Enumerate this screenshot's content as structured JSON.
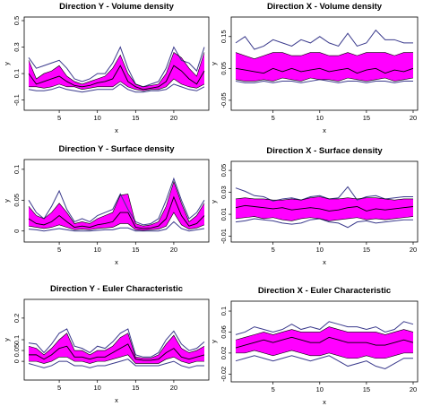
{
  "figure": {
    "colors": {
      "band": "#ff00ff",
      "outer": "#3a3a8c",
      "inner": "#000000",
      "axis": "#000000"
    }
  },
  "chart_data": [
    {
      "type": "area",
      "title": "Direction Y - Volume density",
      "xlabel": "x",
      "ylabel": "y",
      "xlim": [
        1,
        24
      ],
      "ylim": [
        -0.15,
        0.5
      ],
      "xticks": [
        5,
        10,
        15,
        20
      ],
      "yticks": [
        -0.1,
        0.1,
        0.3,
        0.5
      ],
      "x": [
        1,
        2,
        3,
        4,
        5,
        6,
        7,
        8,
        9,
        10,
        11,
        12,
        13,
        14,
        15,
        16,
        17,
        18,
        19,
        20,
        21,
        22,
        23,
        24
      ],
      "series": [
        {
          "role": "outer_upper",
          "values": [
            0.22,
            0.14,
            0.16,
            0.18,
            0.2,
            0.14,
            0.06,
            0.04,
            0.06,
            0.1,
            0.1,
            0.18,
            0.3,
            0.14,
            0.02,
            0.0,
            0.02,
            0.04,
            0.14,
            0.3,
            0.2,
            0.18,
            0.12,
            0.3
          ]
        },
        {
          "role": "band_upper",
          "values": [
            0.2,
            0.06,
            0.1,
            0.12,
            0.16,
            0.08,
            0.04,
            0.02,
            0.04,
            0.06,
            0.08,
            0.14,
            0.24,
            0.1,
            0.02,
            0.0,
            0.01,
            0.02,
            0.1,
            0.26,
            0.22,
            0.14,
            0.08,
            0.26
          ]
        },
        {
          "role": "mean",
          "values": [
            0.1,
            0.02,
            0.04,
            0.06,
            0.08,
            0.04,
            0.01,
            0.0,
            0.01,
            0.03,
            0.04,
            0.06,
            0.16,
            0.04,
            0.0,
            -0.02,
            -0.01,
            0.0,
            0.04,
            0.16,
            0.12,
            0.06,
            0.02,
            0.12
          ]
        },
        {
          "role": "band_lower",
          "values": [
            0.0,
            0.0,
            -0.01,
            0.0,
            0.02,
            0.0,
            0.0,
            -0.02,
            -0.01,
            0.0,
            0.0,
            0.0,
            0.04,
            0.0,
            -0.02,
            -0.03,
            -0.02,
            -0.02,
            0.0,
            0.06,
            0.02,
            0.0,
            -0.01,
            0.02
          ]
        },
        {
          "role": "outer_lower",
          "values": [
            -0.02,
            -0.03,
            -0.03,
            -0.02,
            0.0,
            -0.02,
            -0.03,
            -0.04,
            -0.03,
            -0.02,
            -0.02,
            -0.02,
            0.02,
            -0.02,
            -0.04,
            -0.04,
            -0.03,
            -0.03,
            -0.02,
            0.02,
            0.0,
            -0.02,
            -0.03,
            0.0
          ]
        }
      ]
    },
    {
      "type": "area",
      "title": "Direction X - Volume density",
      "xlabel": "x",
      "ylabel": "y",
      "xlim": [
        1,
        20
      ],
      "ylim": [
        -0.07,
        0.2
      ],
      "xticks": [
        5,
        10,
        15,
        20
      ],
      "yticks": [
        -0.05,
        0.05,
        0.15
      ],
      "x": [
        1,
        2,
        3,
        4,
        5,
        6,
        7,
        8,
        9,
        10,
        11,
        12,
        13,
        14,
        15,
        16,
        17,
        18,
        19,
        20
      ],
      "series": [
        {
          "role": "outer_upper",
          "values": [
            0.13,
            0.15,
            0.11,
            0.12,
            0.14,
            0.13,
            0.12,
            0.14,
            0.13,
            0.15,
            0.13,
            0.12,
            0.16,
            0.12,
            0.13,
            0.17,
            0.14,
            0.14,
            0.13,
            0.13
          ]
        },
        {
          "role": "band_upper",
          "values": [
            0.1,
            0.09,
            0.08,
            0.09,
            0.1,
            0.1,
            0.09,
            0.09,
            0.1,
            0.1,
            0.09,
            0.09,
            0.1,
            0.09,
            0.1,
            0.1,
            0.1,
            0.09,
            0.1,
            0.1
          ]
        },
        {
          "role": "mean",
          "values": [
            0.05,
            0.045,
            0.04,
            0.035,
            0.05,
            0.04,
            0.05,
            0.04,
            0.045,
            0.05,
            0.04,
            0.045,
            0.05,
            0.035,
            0.045,
            0.05,
            0.035,
            0.045,
            0.04,
            0.05
          ]
        },
        {
          "role": "band_lower",
          "values": [
            0.015,
            0.01,
            0.01,
            0.015,
            0.01,
            0.02,
            0.015,
            0.01,
            0.02,
            0.015,
            0.015,
            0.01,
            0.02,
            0.015,
            0.01,
            0.015,
            0.02,
            0.01,
            0.015,
            0.02
          ]
        },
        {
          "role": "outer_lower",
          "values": [
            0.01,
            0.005,
            0.005,
            0.01,
            0.005,
            0.01,
            0.01,
            0.005,
            0.01,
            0.015,
            0.01,
            0.005,
            0.01,
            0.01,
            0.005,
            0.01,
            0.01,
            0.005,
            0.01,
            0.01
          ]
        }
      ]
    },
    {
      "type": "area",
      "title": "Direction Y - Surface density",
      "xlabel": "x",
      "ylabel": "y",
      "xlim": [
        1,
        24
      ],
      "ylim": [
        -0.012,
        0.11
      ],
      "xticks": [
        5,
        10,
        15,
        20
      ],
      "yticks": [
        0.0,
        0.05,
        0.1
      ],
      "x": [
        1,
        2,
        3,
        4,
        5,
        6,
        7,
        8,
        9,
        10,
        11,
        12,
        13,
        14,
        15,
        16,
        17,
        18,
        19,
        20,
        21,
        22,
        23,
        24
      ],
      "series": [
        {
          "role": "outer_upper",
          "values": [
            0.05,
            0.03,
            0.02,
            0.04,
            0.065,
            0.035,
            0.015,
            0.02,
            0.015,
            0.025,
            0.03,
            0.035,
            0.06,
            0.035,
            0.015,
            0.01,
            0.012,
            0.02,
            0.05,
            0.085,
            0.05,
            0.02,
            0.03,
            0.05
          ]
        },
        {
          "role": "band_upper",
          "values": [
            0.04,
            0.025,
            0.02,
            0.03,
            0.045,
            0.03,
            0.012,
            0.015,
            0.012,
            0.02,
            0.025,
            0.03,
            0.058,
            0.06,
            0.012,
            0.008,
            0.01,
            0.015,
            0.04,
            0.08,
            0.045,
            0.015,
            0.025,
            0.045
          ]
        },
        {
          "role": "mean",
          "values": [
            0.02,
            0.012,
            0.01,
            0.015,
            0.025,
            0.015,
            0.006,
            0.008,
            0.006,
            0.01,
            0.012,
            0.015,
            0.03,
            0.03,
            0.006,
            0.004,
            0.005,
            0.008,
            0.02,
            0.055,
            0.025,
            0.008,
            0.012,
            0.025
          ]
        },
        {
          "role": "band_lower",
          "values": [
            0.008,
            0.006,
            0.004,
            0.006,
            0.01,
            0.006,
            0.002,
            0.003,
            0.002,
            0.004,
            0.005,
            0.006,
            0.012,
            0.012,
            0.002,
            0.001,
            0.002,
            0.003,
            0.008,
            0.03,
            0.01,
            0.003,
            0.005,
            0.01
          ]
        },
        {
          "role": "outer_lower",
          "values": [
            0.003,
            0.002,
            0.0,
            0.002,
            0.004,
            0.002,
            0.0,
            0.0,
            0.0,
            0.001,
            0.002,
            0.002,
            0.005,
            0.005,
            0.0,
            0.0,
            0.0,
            0.0,
            0.003,
            0.015,
            0.004,
            0.0,
            0.002,
            0.004
          ]
        }
      ]
    },
    {
      "type": "area",
      "title": "Direction X - Surface density",
      "xlabel": "x",
      "ylabel": "y",
      "xlim": [
        1,
        20
      ],
      "ylim": [
        -0.012,
        0.055
      ],
      "xticks": [
        5,
        10,
        15,
        20
      ],
      "yticks": [
        -0.01,
        0.01,
        0.03,
        0.05
      ],
      "x": [
        1,
        2,
        3,
        4,
        5,
        6,
        7,
        8,
        9,
        10,
        11,
        12,
        13,
        14,
        15,
        16,
        17,
        18,
        19,
        20
      ],
      "series": [
        {
          "role": "outer_upper",
          "values": [
            0.034,
            0.031,
            0.027,
            0.026,
            0.022,
            0.024,
            0.025,
            0.023,
            0.026,
            0.027,
            0.024,
            0.025,
            0.035,
            0.023,
            0.026,
            0.027,
            0.024,
            0.025,
            0.026,
            0.026
          ]
        },
        {
          "role": "band_upper",
          "values": [
            0.024,
            0.025,
            0.024,
            0.024,
            0.023,
            0.023,
            0.024,
            0.023,
            0.025,
            0.026,
            0.024,
            0.024,
            0.025,
            0.024,
            0.025,
            0.025,
            0.024,
            0.023,
            0.024,
            0.024
          ]
        },
        {
          "role": "mean",
          "values": [
            0.016,
            0.018,
            0.017,
            0.016,
            0.015,
            0.016,
            0.014,
            0.015,
            0.016,
            0.015,
            0.013,
            0.014,
            0.016,
            0.017,
            0.013,
            0.015,
            0.014,
            0.015,
            0.016,
            0.017
          ]
        },
        {
          "role": "band_lower",
          "values": [
            0.006,
            0.007,
            0.008,
            0.006,
            0.007,
            0.005,
            0.004,
            0.006,
            0.007,
            0.006,
            0.004,
            0.005,
            0.006,
            0.007,
            0.005,
            0.006,
            0.005,
            0.006,
            0.007,
            0.008
          ]
        },
        {
          "role": "outer_lower",
          "values": [
            0.003,
            0.004,
            0.006,
            0.005,
            0.004,
            0.002,
            0.001,
            0.002,
            0.005,
            0.006,
            0.003,
            0.002,
            -0.002,
            0.003,
            0.004,
            0.002,
            0.003,
            0.004,
            0.005,
            0.005
          ]
        }
      ]
    },
    {
      "type": "area",
      "title": "Direction Y - Euler Characteristic",
      "xlabel": "x",
      "ylabel": "y",
      "xlim": [
        1,
        24
      ],
      "ylim": [
        -0.07,
        0.27
      ],
      "xticks": [
        5,
        10,
        15,
        20
      ],
      "yticks": [
        0.0,
        0.05,
        0.1,
        0.2
      ],
      "x": [
        1,
        2,
        3,
        4,
        5,
        6,
        7,
        8,
        9,
        10,
        11,
        12,
        13,
        14,
        15,
        16,
        17,
        18,
        19,
        20,
        21,
        22,
        23,
        24
      ],
      "series": [
        {
          "role": "outer_upper",
          "values": [
            0.085,
            0.08,
            0.04,
            0.08,
            0.13,
            0.15,
            0.07,
            0.06,
            0.04,
            0.07,
            0.06,
            0.09,
            0.13,
            0.15,
            0.03,
            0.02,
            0.02,
            0.04,
            0.1,
            0.14,
            0.08,
            0.05,
            0.06,
            0.09
          ]
        },
        {
          "role": "band_upper",
          "values": [
            0.07,
            0.06,
            0.03,
            0.06,
            0.1,
            0.13,
            0.05,
            0.05,
            0.03,
            0.05,
            0.05,
            0.07,
            0.11,
            0.13,
            0.02,
            0.015,
            0.015,
            0.03,
            0.08,
            0.12,
            0.06,
            0.04,
            0.05,
            0.07
          ]
        },
        {
          "role": "mean",
          "values": [
            0.03,
            0.03,
            0.01,
            0.03,
            0.06,
            0.07,
            0.02,
            0.02,
            0.01,
            0.02,
            0.02,
            0.04,
            0.06,
            0.08,
            0.01,
            0.005,
            0.005,
            0.01,
            0.04,
            0.06,
            0.02,
            0.01,
            0.02,
            0.03
          ]
        },
        {
          "role": "band_lower",
          "values": [
            0.0,
            0.0,
            -0.01,
            0.0,
            0.02,
            0.02,
            0.0,
            0.0,
            -0.01,
            0.0,
            0.0,
            0.01,
            0.02,
            0.03,
            -0.01,
            -0.01,
            -0.01,
            -0.01,
            0.01,
            0.02,
            0.0,
            -0.01,
            0.0,
            0.0
          ]
        },
        {
          "role": "outer_lower",
          "values": [
            -0.01,
            -0.02,
            -0.03,
            -0.02,
            0.0,
            0.0,
            -0.02,
            -0.02,
            -0.03,
            -0.02,
            -0.02,
            -0.01,
            0.0,
            0.01,
            -0.02,
            -0.02,
            -0.02,
            -0.02,
            -0.01,
            0.0,
            -0.02,
            -0.03,
            -0.02,
            -0.02
          ]
        }
      ]
    },
    {
      "type": "area",
      "title": "Direction X - Euler Characteristic",
      "xlabel": "x",
      "ylabel": "y",
      "xlim": [
        1,
        20
      ],
      "ylim": [
        -0.028,
        0.112
      ],
      "xticks": [
        5,
        10,
        15,
        20
      ],
      "yticks": [
        -0.02,
        0.02,
        0.06,
        0.1
      ],
      "x": [
        1,
        2,
        3,
        4,
        5,
        6,
        7,
        8,
        9,
        10,
        11,
        12,
        13,
        14,
        15,
        16,
        17,
        18,
        19,
        20
      ],
      "series": [
        {
          "role": "outer_upper",
          "values": [
            0.055,
            0.06,
            0.07,
            0.065,
            0.06,
            0.065,
            0.075,
            0.065,
            0.07,
            0.065,
            0.08,
            0.075,
            0.07,
            0.07,
            0.065,
            0.07,
            0.06,
            0.065,
            0.08,
            0.075
          ]
        },
        {
          "role": "band_upper",
          "values": [
            0.045,
            0.05,
            0.055,
            0.06,
            0.055,
            0.06,
            0.065,
            0.06,
            0.06,
            0.06,
            0.07,
            0.065,
            0.06,
            0.06,
            0.06,
            0.06,
            0.055,
            0.06,
            0.065,
            0.06
          ]
        },
        {
          "role": "mean",
          "values": [
            0.03,
            0.035,
            0.04,
            0.045,
            0.04,
            0.045,
            0.05,
            0.045,
            0.04,
            0.04,
            0.05,
            0.045,
            0.04,
            0.04,
            0.04,
            0.035,
            0.035,
            0.04,
            0.045,
            0.04
          ]
        },
        {
          "role": "band_lower",
          "values": [
            0.02,
            0.02,
            0.025,
            0.02,
            0.015,
            0.02,
            0.025,
            0.02,
            0.015,
            0.015,
            0.02,
            0.015,
            0.01,
            0.01,
            0.015,
            0.01,
            0.01,
            0.015,
            0.02,
            0.02
          ]
        },
        {
          "role": "outer_lower",
          "values": [
            0.005,
            0.01,
            0.015,
            0.01,
            0.005,
            0.01,
            0.015,
            0.01,
            0.005,
            0.01,
            0.015,
            0.005,
            -0.005,
            0.0,
            0.005,
            -0.005,
            -0.01,
            0.0,
            0.01,
            0.01
          ]
        }
      ]
    }
  ]
}
